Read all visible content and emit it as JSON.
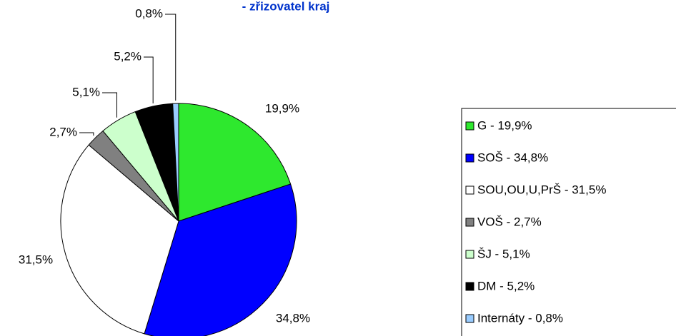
{
  "chart_data": {
    "type": "pie",
    "title": "- zřizovatel kraj",
    "categories": [
      "G - 19,9%",
      "SOŠ - 34,8%",
      "SOU,OU,U,PrŠ - 31,5%",
      "VOŠ - 2,7%",
      "ŠJ - 5,1%",
      "DM - 5,2%",
      "Internáty - 0,8%"
    ],
    "values": [
      19.9,
      34.8,
      31.5,
      2.7,
      5.1,
      5.2,
      0.8
    ],
    "value_labels": [
      "19,9%",
      "34,8%",
      "31,5%",
      "2,7%",
      "5,1%",
      "5,2%",
      "0,8%"
    ],
    "colors": [
      "#2ee82e",
      "#0000ff",
      "#ffffff",
      "#808080",
      "#ccffcc",
      "#000000",
      "#99ccff"
    ],
    "legend": "right"
  }
}
